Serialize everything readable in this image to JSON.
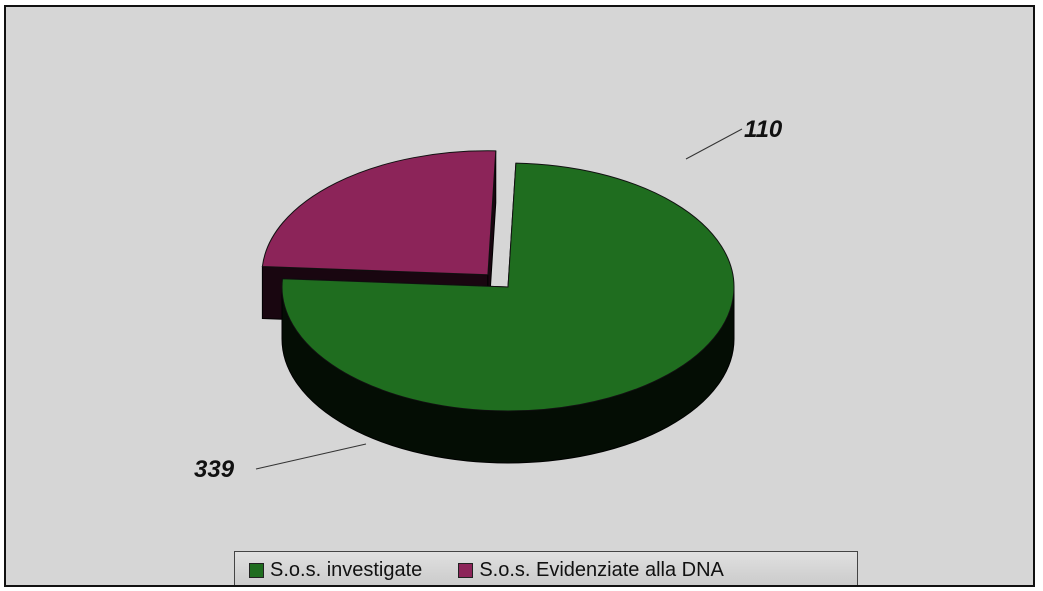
{
  "chart_data": {
    "type": "pie",
    "style": "3d-exploded",
    "categories": [
      "S.o.s. investigate",
      "S.o.s. Evidenziate alla DNA"
    ],
    "values": [
      339,
      110
    ],
    "data_labels": [
      "339",
      "110"
    ],
    "colors": [
      "#1f6d1f",
      "#8c2459"
    ],
    "legend": {
      "placement": "bottom",
      "entries": [
        "S.o.s. investigate",
        "S.o.s. Evidenziate alla DNA"
      ]
    }
  }
}
